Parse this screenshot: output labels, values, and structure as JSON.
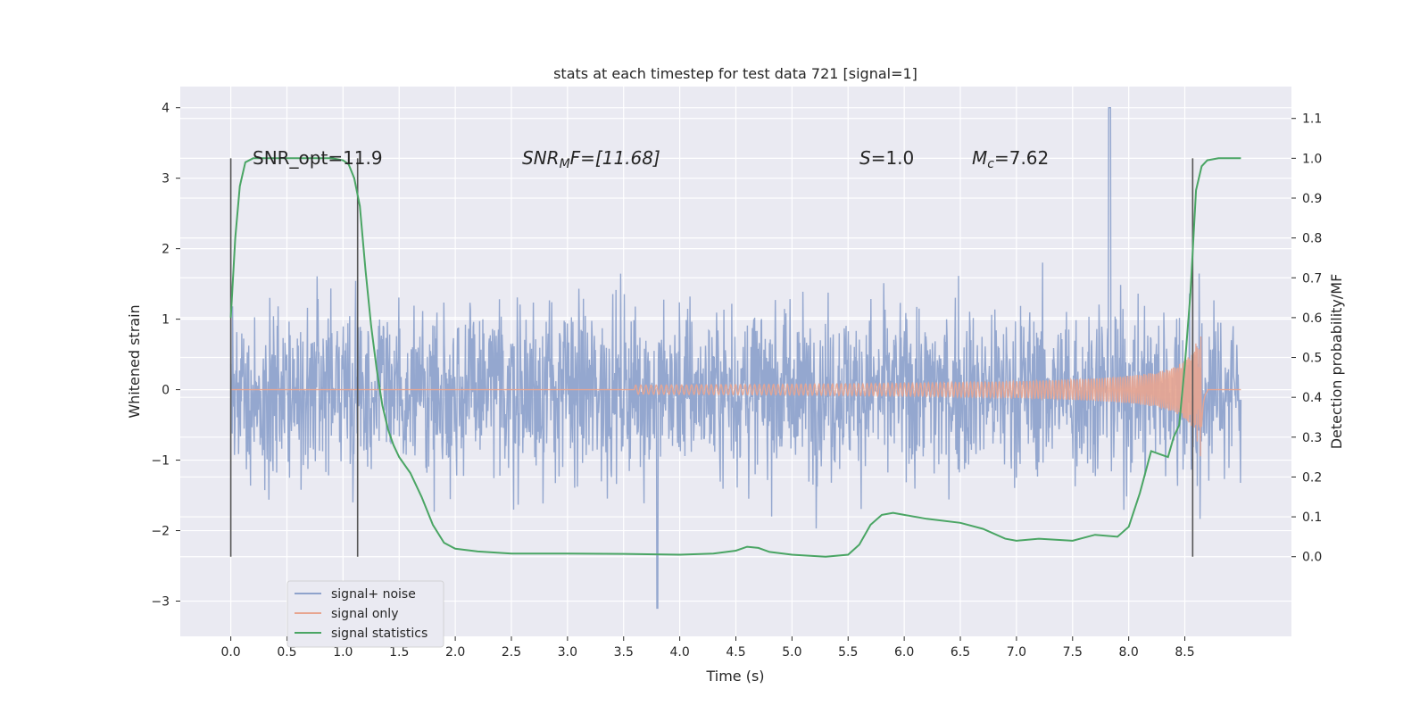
{
  "chart_data": {
    "type": "line",
    "title": "stats at each timestep for test data 721 [signal=1]",
    "xlabel": "Time (s)",
    "ylabel_left": "Whitened strain",
    "ylabel_right": "Detection probability/MF",
    "xlim": [
      -0.45,
      9.45
    ],
    "ylim_left": [
      -3.5,
      4.3
    ],
    "ylim_right": [
      -0.2,
      1.18
    ],
    "x_ticks": [
      "0.0",
      "0.5",
      "1.0",
      "1.5",
      "2.0",
      "2.5",
      "3.0",
      "3.5",
      "4.0",
      "4.5",
      "5.0",
      "5.5",
      "6.0",
      "6.5",
      "7.0",
      "7.5",
      "8.0",
      "8.5"
    ],
    "y_left_ticks": [
      "4",
      "3",
      "2",
      "1",
      "0",
      "−1",
      "−2",
      "−3"
    ],
    "y_right_ticks": [
      "1.1",
      "1.0",
      "0.9",
      "0.8",
      "0.7",
      "0.6",
      "0.5",
      "0.4",
      "0.3",
      "0.2",
      "0.1",
      "0.0"
    ],
    "grid": true,
    "legend_position": "lower-left",
    "annotations": {
      "snr_opt": "SNR_opt=11.9",
      "snr_mf_italic": "SNR",
      "snr_mf_sub": "M",
      "snr_mf_rest": "F=[11.68]",
      "s_var": "S",
      "s_value": "=1.0",
      "mc_var": "M",
      "mc_sub": "c",
      "mc_value": "=7.62"
    },
    "vertical_markers": [
      0.0,
      1.13,
      8.57
    ],
    "series": [
      {
        "name": "signal+ noise",
        "color": "#8fa3cc",
        "description_range": [
          -3.1,
          4.0
        ],
        "x_range": [
          0.0,
          9.0
        ]
      },
      {
        "name": "signal only",
        "color": "#e8a590",
        "x_range": [
          0.0,
          9.0
        ],
        "chirp_onset": 4.0,
        "merger_time": 8.65,
        "peak_amplitude": 1.5
      },
      {
        "name": "signal statistics",
        "color": "#4aa564",
        "x": [
          0.0,
          0.04,
          0.08,
          0.13,
          0.2,
          0.3,
          0.5,
          0.7,
          0.9,
          1.0,
          1.05,
          1.1,
          1.15,
          1.2,
          1.25,
          1.3,
          1.35,
          1.4,
          1.45,
          1.5,
          1.6,
          1.7,
          1.8,
          1.9,
          2.0,
          2.2,
          2.5,
          2.8,
          3.0,
          3.5,
          4.0,
          4.3,
          4.5,
          4.6,
          4.7,
          4.8,
          5.0,
          5.3,
          5.5,
          5.6,
          5.7,
          5.8,
          5.9,
          6.0,
          6.2,
          6.5,
          6.7,
          6.9,
          7.0,
          7.2,
          7.5,
          7.7,
          7.9,
          8.0,
          8.1,
          8.2,
          8.3,
          8.35,
          8.4,
          8.45,
          8.5,
          8.55,
          8.6,
          8.65,
          8.7,
          8.8,
          9.0
        ],
        "y": [
          0.6,
          0.8,
          0.93,
          0.99,
          1.0,
          1.0,
          1.0,
          1.0,
          1.0,
          0.995,
          0.985,
          0.95,
          0.88,
          0.72,
          0.58,
          0.47,
          0.38,
          0.32,
          0.28,
          0.25,
          0.21,
          0.15,
          0.08,
          0.035,
          0.02,
          0.013,
          0.008,
          0.008,
          0.008,
          0.007,
          0.005,
          0.008,
          0.015,
          0.025,
          0.022,
          0.012,
          0.005,
          0.0,
          0.005,
          0.03,
          0.08,
          0.105,
          0.11,
          0.105,
          0.095,
          0.085,
          0.07,
          0.045,
          0.04,
          0.045,
          0.04,
          0.055,
          0.05,
          0.075,
          0.16,
          0.265,
          0.255,
          0.25,
          0.3,
          0.33,
          0.48,
          0.66,
          0.92,
          0.98,
          0.995,
          1.0,
          1.0
        ]
      }
    ]
  }
}
